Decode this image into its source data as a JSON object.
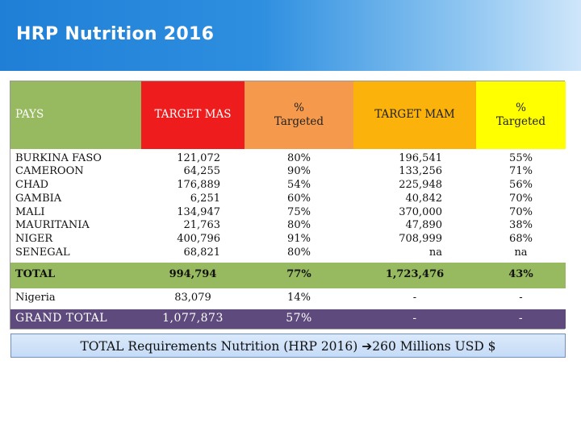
{
  "slide": {
    "title": "HRP Nutrition 2016"
  },
  "table": {
    "headers": {
      "pays": "PAYS",
      "target_mas": "TARGET MAS",
      "pct_mas_line1": "%",
      "pct_mas_line2": "Targeted",
      "target_mam": "TARGET MAM",
      "pct_mam_line1": "%",
      "pct_mam_line2": "Targeted"
    },
    "countries": [
      {
        "pays": "BURKINA FASO",
        "target_mas": "121,072",
        "pct_mas": "80%",
        "target_mam": "196,541",
        "pct_mam": "55%"
      },
      {
        "pays": "CAMEROON",
        "target_mas": "64,255",
        "pct_mas": "90%",
        "target_mam": "133,256",
        "pct_mam": "71%"
      },
      {
        "pays": "CHAD",
        "target_mas": "176,889",
        "pct_mas": "54%",
        "target_mam": "225,948",
        "pct_mam": "56%"
      },
      {
        "pays": "GAMBIA",
        "target_mas": "6,251",
        "pct_mas": "60%",
        "target_mam": "40,842",
        "pct_mam": "70%"
      },
      {
        "pays": "MALI",
        "target_mas": "134,947",
        "pct_mas": "75%",
        "target_mam": "370,000",
        "pct_mam": "70%"
      },
      {
        "pays": "MAURITANIA",
        "target_mas": "21,763",
        "pct_mas": "80%",
        "target_mam": "47,890",
        "pct_mam": "38%"
      },
      {
        "pays": "NIGER",
        "target_mas": "400,796",
        "pct_mas": "91%",
        "target_mam": "708,999",
        "pct_mam": "68%"
      },
      {
        "pays": "SENEGAL",
        "target_mas": "68,821",
        "pct_mas": "80%",
        "target_mam": "na",
        "pct_mam": "na"
      }
    ],
    "total": {
      "label": "TOTAL",
      "target_mas": "994,794",
      "pct_mas": "77%",
      "target_mam": "1,723,476",
      "pct_mam": "43%"
    },
    "nigeria": {
      "label": "Nigeria",
      "target_mas": "83,079",
      "pct_mas": "14%",
      "target_mam": "-",
      "pct_mam": "-"
    },
    "grand_total": {
      "label": "GRAND TOTAL",
      "target_mas": "1,077,873",
      "pct_mas": "57%",
      "target_mam": "-",
      "pct_mam": "-"
    }
  },
  "summary": {
    "text_before": "TOTAL Requirements Nutrition (HRP 2016) ",
    "arrow": "➔",
    "text_after": "260 Millions USD $"
  },
  "colors": {
    "banner_start": "#1f7fd6",
    "header_green": "#97b95f",
    "header_red": "#ee1c1c",
    "header_orange": "#f59a4c",
    "header_amber": "#fbb20a",
    "header_yellow": "#ffff00",
    "grand_total_purple": "#5e4a7c",
    "note_blue": "#c5dbf6"
  }
}
